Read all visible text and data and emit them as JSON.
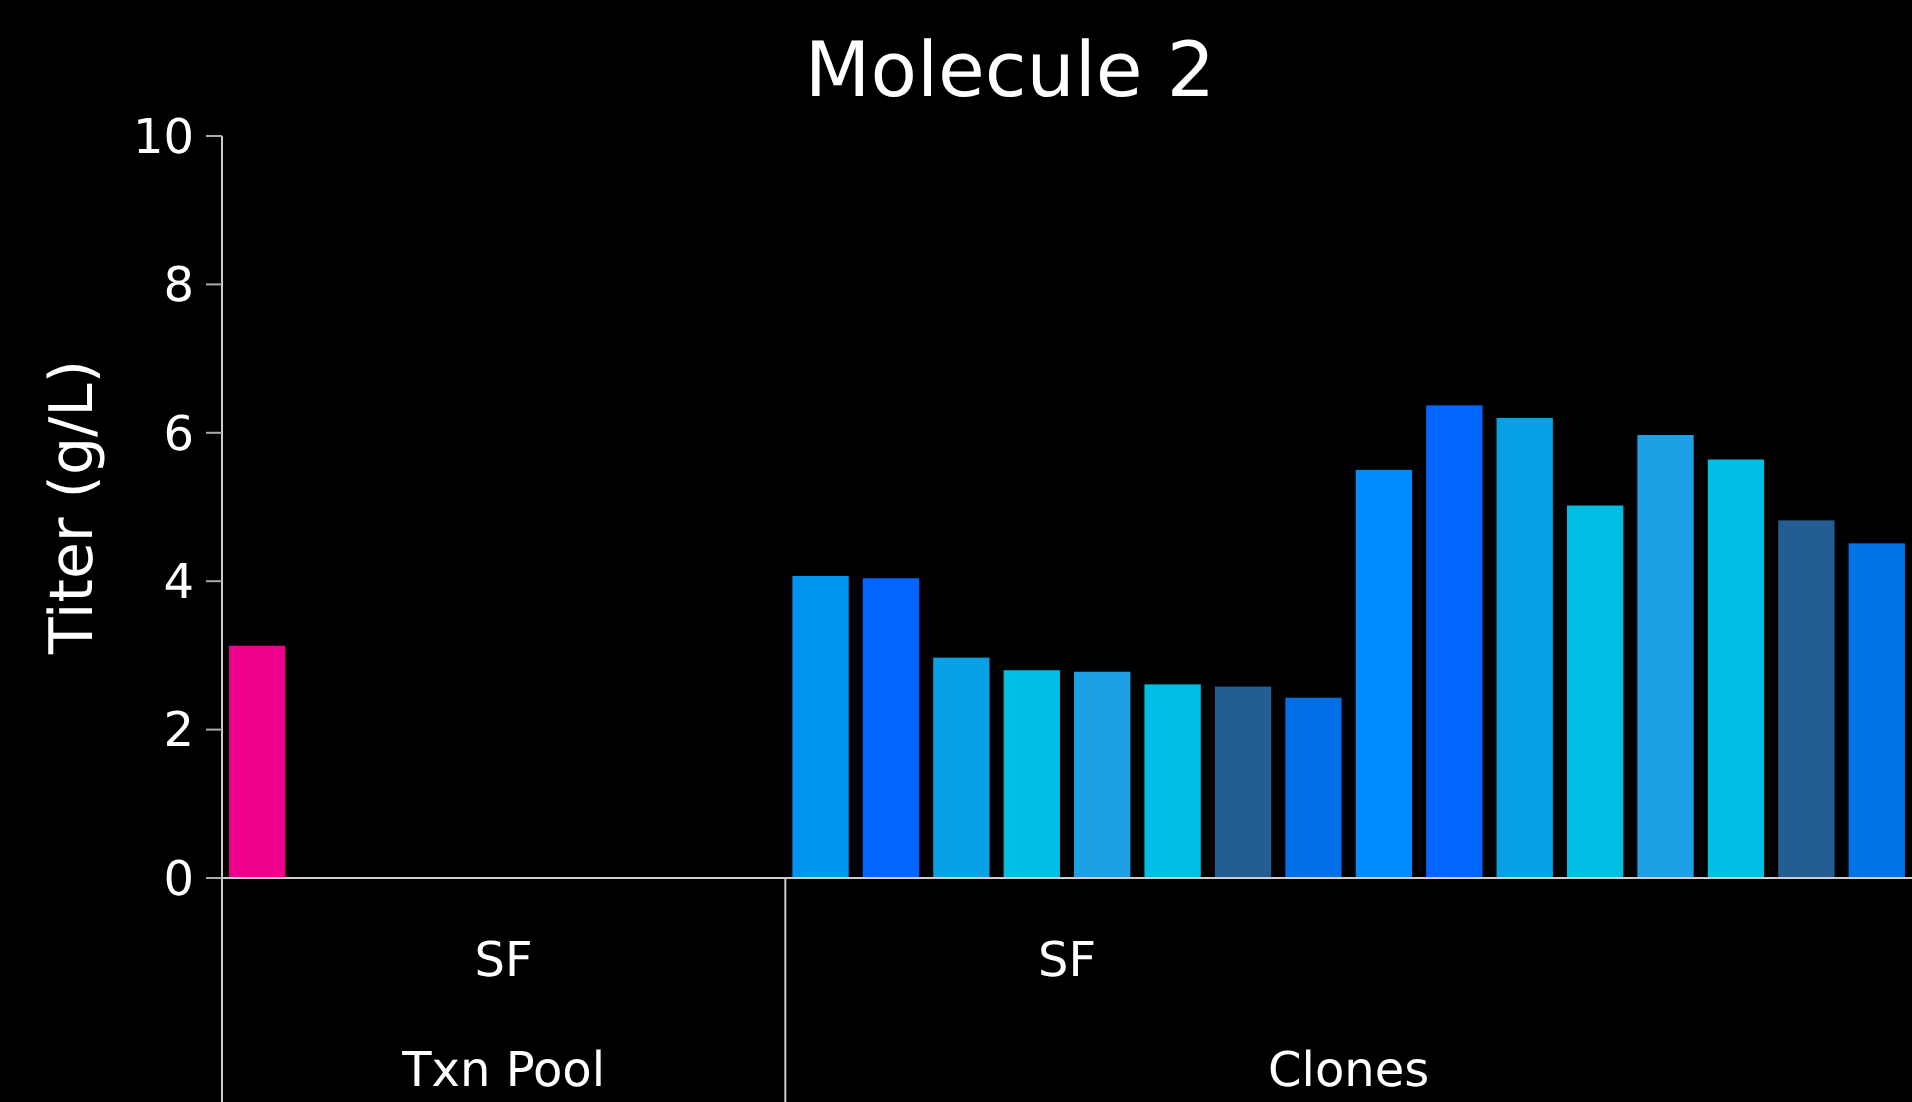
{
  "chart_data": {
    "type": "bar",
    "title": "Molecule 2",
    "ylabel": "Titer (g/L)",
    "categories": [
      null,
      null,
      null,
      null,
      null,
      null,
      null,
      null,
      null,
      null,
      null,
      null,
      null,
      null,
      null,
      null,
      null,
      null,
      null,
      null,
      null,
      null,
      null,
      null
    ],
    "values": [
      3.13,
      null,
      null,
      null,
      null,
      null,
      null,
      null,
      4.07,
      4.04,
      2.97,
      2.8,
      2.78,
      2.61,
      2.58,
      2.43,
      5.5,
      6.37,
      6.2,
      5.02,
      5.97,
      5.64,
      4.82,
      4.51
    ],
    "colors": [
      "#ec008c",
      null,
      null,
      null,
      null,
      null,
      null,
      null,
      "#0096f0",
      "#0066ff",
      "#08a0e4",
      "#00bde4",
      "#1ea0e6",
      "#00bde4",
      "#235d91",
      "#006fe6",
      "#008cff",
      "#0066ff",
      "#08a0e4",
      "#00bde4",
      "#1ea0e6",
      "#00bde4",
      "#235d91",
      "#0073e6"
    ],
    "ylim": [
      0,
      10
    ],
    "yticks": [
      0,
      2,
      4,
      6,
      8,
      10
    ],
    "annotations": [
      "SF",
      "Txn Pool",
      "SF",
      "Clones"
    ]
  }
}
